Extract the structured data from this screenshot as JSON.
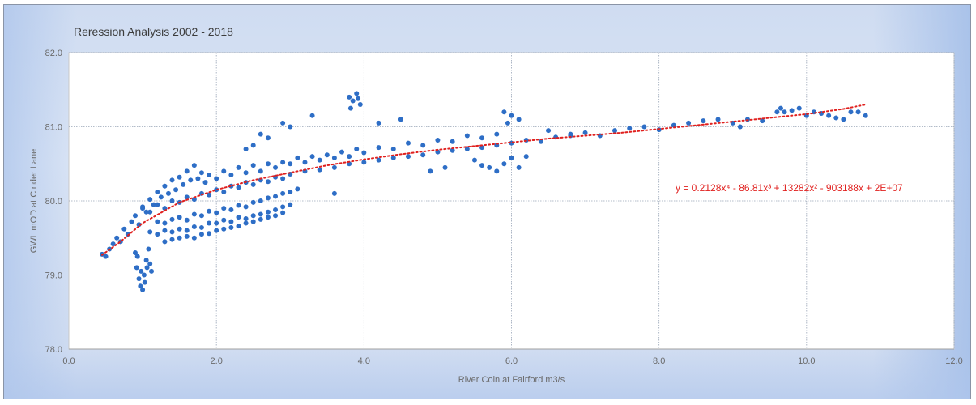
{
  "heading": "",
  "chart_data": {
    "type": "scatter",
    "title": "Reression Analysis 2002 - 2018",
    "xlabel": "River Coln at Fairford m3/s",
    "ylabel": "GWL mOD at Cinder Lane",
    "xlim": [
      0,
      12
    ],
    "ylim": [
      78,
      82
    ],
    "x_ticks": [
      0,
      2,
      4,
      6,
      8,
      10,
      12
    ],
    "x_tick_labels": [
      "0.0",
      "2.0",
      "4.0",
      "6.0",
      "8.0",
      "10.0",
      "12.0"
    ],
    "y_ticks": [
      78,
      79,
      80,
      81,
      82
    ],
    "y_tick_labels": [
      "78.0",
      "79.0",
      "80.0",
      "81.0",
      "82.0"
    ],
    "grid": true,
    "series": [
      {
        "marker_color": "#2e6ec6",
        "points": [
          [
            0.45,
            79.28
          ],
          [
            0.5,
            79.25
          ],
          [
            0.55,
            79.35
          ],
          [
            0.6,
            79.42
          ],
          [
            0.65,
            79.5
          ],
          [
            0.7,
            79.45
          ],
          [
            0.75,
            79.62
          ],
          [
            0.8,
            79.55
          ],
          [
            0.85,
            79.72
          ],
          [
            0.9,
            79.8
          ],
          [
            0.95,
            79.68
          ],
          [
            1.0,
            79.92
          ],
          [
            1.05,
            79.85
          ],
          [
            1.1,
            80.02
          ],
          [
            1.15,
            79.95
          ],
          [
            1.2,
            80.12
          ],
          [
            1.25,
            80.05
          ],
          [
            1.3,
            80.2
          ],
          [
            1.35,
            80.1
          ],
          [
            1.4,
            80.28
          ],
          [
            1.45,
            80.15
          ],
          [
            1.5,
            80.32
          ],
          [
            1.55,
            80.22
          ],
          [
            1.6,
            80.4
          ],
          [
            1.65,
            80.28
          ],
          [
            1.7,
            80.48
          ],
          [
            1.75,
            80.3
          ],
          [
            1.8,
            80.38
          ],
          [
            1.85,
            80.25
          ],
          [
            1.9,
            80.35
          ],
          [
            2.0,
            80.3
          ],
          [
            2.1,
            80.4
          ],
          [
            2.2,
            80.35
          ],
          [
            2.3,
            80.45
          ],
          [
            2.4,
            80.38
          ],
          [
            2.5,
            80.48
          ],
          [
            2.6,
            80.4
          ],
          [
            2.7,
            80.5
          ],
          [
            2.8,
            80.45
          ],
          [
            2.9,
            80.52
          ],
          [
            3.0,
            80.5
          ],
          [
            3.1,
            80.58
          ],
          [
            3.2,
            80.52
          ],
          [
            3.3,
            80.6
          ],
          [
            3.4,
            80.55
          ],
          [
            3.5,
            80.62
          ],
          [
            3.6,
            80.58
          ],
          [
            3.7,
            80.66
          ],
          [
            3.8,
            80.6
          ],
          [
            3.9,
            80.7
          ],
          [
            4.0,
            80.65
          ],
          [
            4.2,
            80.72
          ],
          [
            4.4,
            80.7
          ],
          [
            4.6,
            80.78
          ],
          [
            4.8,
            80.75
          ],
          [
            5.0,
            80.82
          ],
          [
            5.2,
            80.8
          ],
          [
            5.4,
            80.88
          ],
          [
            5.6,
            80.85
          ],
          [
            5.8,
            80.9
          ],
          [
            1.0,
            79.9
          ],
          [
            1.1,
            79.85
          ],
          [
            1.2,
            79.95
          ],
          [
            1.3,
            79.9
          ],
          [
            1.4,
            80.0
          ],
          [
            1.5,
            79.98
          ],
          [
            1.6,
            80.05
          ],
          [
            1.7,
            80.02
          ],
          [
            1.8,
            80.1
          ],
          [
            1.9,
            80.08
          ],
          [
            2.0,
            80.15
          ],
          [
            2.1,
            80.12
          ],
          [
            2.2,
            80.2
          ],
          [
            2.3,
            80.18
          ],
          [
            2.4,
            80.25
          ],
          [
            2.5,
            80.22
          ],
          [
            2.6,
            80.28
          ],
          [
            2.7,
            80.26
          ],
          [
            2.8,
            80.32
          ],
          [
            2.9,
            80.3
          ],
          [
            3.0,
            80.36
          ],
          [
            3.2,
            80.4
          ],
          [
            3.4,
            80.42
          ],
          [
            3.6,
            80.45
          ],
          [
            3.8,
            80.5
          ],
          [
            4.0,
            80.52
          ],
          [
            4.2,
            80.55
          ],
          [
            4.4,
            80.58
          ],
          [
            4.6,
            80.6
          ],
          [
            4.8,
            80.62
          ],
          [
            5.0,
            80.66
          ],
          [
            5.2,
            80.68
          ],
          [
            5.4,
            80.7
          ],
          [
            5.6,
            80.72
          ],
          [
            5.8,
            80.75
          ],
          [
            6.0,
            80.78
          ],
          [
            6.2,
            80.82
          ],
          [
            6.4,
            80.8
          ],
          [
            6.6,
            80.86
          ],
          [
            6.8,
            80.88
          ],
          [
            1.2,
            79.72
          ],
          [
            1.3,
            79.7
          ],
          [
            1.4,
            79.75
          ],
          [
            1.5,
            79.78
          ],
          [
            1.6,
            79.74
          ],
          [
            1.7,
            79.82
          ],
          [
            1.8,
            79.8
          ],
          [
            1.9,
            79.86
          ],
          [
            2.0,
            79.84
          ],
          [
            2.1,
            79.9
          ],
          [
            2.2,
            79.88
          ],
          [
            2.3,
            79.94
          ],
          [
            2.4,
            79.92
          ],
          [
            2.5,
            79.98
          ],
          [
            2.6,
            80.0
          ],
          [
            2.7,
            80.04
          ],
          [
            2.8,
            80.06
          ],
          [
            2.9,
            80.1
          ],
          [
            3.0,
            80.12
          ],
          [
            3.1,
            80.16
          ],
          [
            1.1,
            79.58
          ],
          [
            1.2,
            79.55
          ],
          [
            1.3,
            79.6
          ],
          [
            1.4,
            79.58
          ],
          [
            1.5,
            79.62
          ],
          [
            1.6,
            79.6
          ],
          [
            1.7,
            79.65
          ],
          [
            1.8,
            79.64
          ],
          [
            1.9,
            79.7
          ],
          [
            2.0,
            79.7
          ],
          [
            2.1,
            79.74
          ],
          [
            2.2,
            79.72
          ],
          [
            2.3,
            79.78
          ],
          [
            2.4,
            79.76
          ],
          [
            2.5,
            79.8
          ],
          [
            2.6,
            79.82
          ],
          [
            2.7,
            79.85
          ],
          [
            2.8,
            79.88
          ],
          [
            2.9,
            79.92
          ],
          [
            3.0,
            79.95
          ],
          [
            1.3,
            79.45
          ],
          [
            1.4,
            79.48
          ],
          [
            1.5,
            79.5
          ],
          [
            1.6,
            79.52
          ],
          [
            1.7,
            79.5
          ],
          [
            1.8,
            79.55
          ],
          [
            1.9,
            79.56
          ],
          [
            2.0,
            79.6
          ],
          [
            2.1,
            79.62
          ],
          [
            2.2,
            79.64
          ],
          [
            2.3,
            79.66
          ],
          [
            2.4,
            79.7
          ],
          [
            2.5,
            79.72
          ],
          [
            2.6,
            79.75
          ],
          [
            2.7,
            79.78
          ],
          [
            2.8,
            79.8
          ],
          [
            2.9,
            79.84
          ],
          [
            0.9,
            79.3
          ],
          [
            0.92,
            79.1
          ],
          [
            0.95,
            78.95
          ],
          [
            0.97,
            78.85
          ],
          [
            1.0,
            78.8
          ],
          [
            1.02,
            79.0
          ],
          [
            1.05,
            79.2
          ],
          [
            1.08,
            79.35
          ],
          [
            1.1,
            79.15
          ],
          [
            1.12,
            79.05
          ],
          [
            0.93,
            79.25
          ],
          [
            0.98,
            79.05
          ],
          [
            1.03,
            78.9
          ],
          [
            1.06,
            79.1
          ],
          [
            3.8,
            81.4
          ],
          [
            3.85,
            81.35
          ],
          [
            3.9,
            81.45
          ],
          [
            3.95,
            81.3
          ],
          [
            3.82,
            81.25
          ],
          [
            3.92,
            81.38
          ],
          [
            3.3,
            81.15
          ],
          [
            2.5,
            80.75
          ],
          [
            2.6,
            80.9
          ],
          [
            2.9,
            81.05
          ],
          [
            3.0,
            81.0
          ],
          [
            2.7,
            80.85
          ],
          [
            2.4,
            80.7
          ],
          [
            3.6,
            80.1
          ],
          [
            4.2,
            81.05
          ],
          [
            4.5,
            81.1
          ],
          [
            5.9,
            81.2
          ],
          [
            6.0,
            81.15
          ],
          [
            6.1,
            81.1
          ],
          [
            5.95,
            81.05
          ],
          [
            5.5,
            80.55
          ],
          [
            5.6,
            80.48
          ],
          [
            5.7,
            80.45
          ],
          [
            5.8,
            80.4
          ],
          [
            5.9,
            80.5
          ],
          [
            6.0,
            80.58
          ],
          [
            6.1,
            80.45
          ],
          [
            6.2,
            80.6
          ],
          [
            4.9,
            80.4
          ],
          [
            5.1,
            80.45
          ],
          [
            6.5,
            80.95
          ],
          [
            6.8,
            80.9
          ],
          [
            7.0,
            80.92
          ],
          [
            7.2,
            80.88
          ],
          [
            7.4,
            80.95
          ],
          [
            7.6,
            80.98
          ],
          [
            7.8,
            81.0
          ],
          [
            8.0,
            80.96
          ],
          [
            8.2,
            81.02
          ],
          [
            8.4,
            81.05
          ],
          [
            8.6,
            81.08
          ],
          [
            8.8,
            81.1
          ],
          [
            9.0,
            81.05
          ],
          [
            9.1,
            81.0
          ],
          [
            9.2,
            81.1
          ],
          [
            9.4,
            81.08
          ],
          [
            9.6,
            81.2
          ],
          [
            9.65,
            81.25
          ],
          [
            9.7,
            81.2
          ],
          [
            9.8,
            81.22
          ],
          [
            10.0,
            81.15
          ],
          [
            10.2,
            81.18
          ],
          [
            10.4,
            81.12
          ],
          [
            10.6,
            81.2
          ],
          [
            10.8,
            81.15
          ],
          [
            9.9,
            81.25
          ],
          [
            10.1,
            81.2
          ],
          [
            10.5,
            81.1
          ],
          [
            10.7,
            81.2
          ],
          [
            10.3,
            81.15
          ]
        ]
      }
    ],
    "trendline": {
      "type": "polynomial",
      "order": 4,
      "color": "#e0201e",
      "equation": "y = 0.2128x⁴ - 86.81x³ + 13282x² - 903188x + 2E+07",
      "points": [
        [
          0.45,
          79.27
        ],
        [
          0.7,
          79.45
        ],
        [
          1.0,
          79.7
        ],
        [
          1.5,
          79.98
        ],
        [
          2.0,
          80.15
        ],
        [
          2.5,
          80.28
        ],
        [
          3.0,
          80.38
        ],
        [
          3.5,
          80.48
        ],
        [
          4.0,
          80.56
        ],
        [
          4.5,
          80.63
        ],
        [
          5.0,
          80.69
        ],
        [
          5.5,
          80.74
        ],
        [
          6.0,
          80.79
        ],
        [
          6.5,
          80.84
        ],
        [
          7.0,
          80.88
        ],
        [
          7.5,
          80.92
        ],
        [
          8.0,
          80.97
        ],
        [
          8.5,
          81.02
        ],
        [
          9.0,
          81.07
        ],
        [
          9.5,
          81.12
        ],
        [
          10.0,
          81.17
        ],
        [
          10.5,
          81.24
        ],
        [
          10.8,
          81.3
        ]
      ]
    }
  }
}
